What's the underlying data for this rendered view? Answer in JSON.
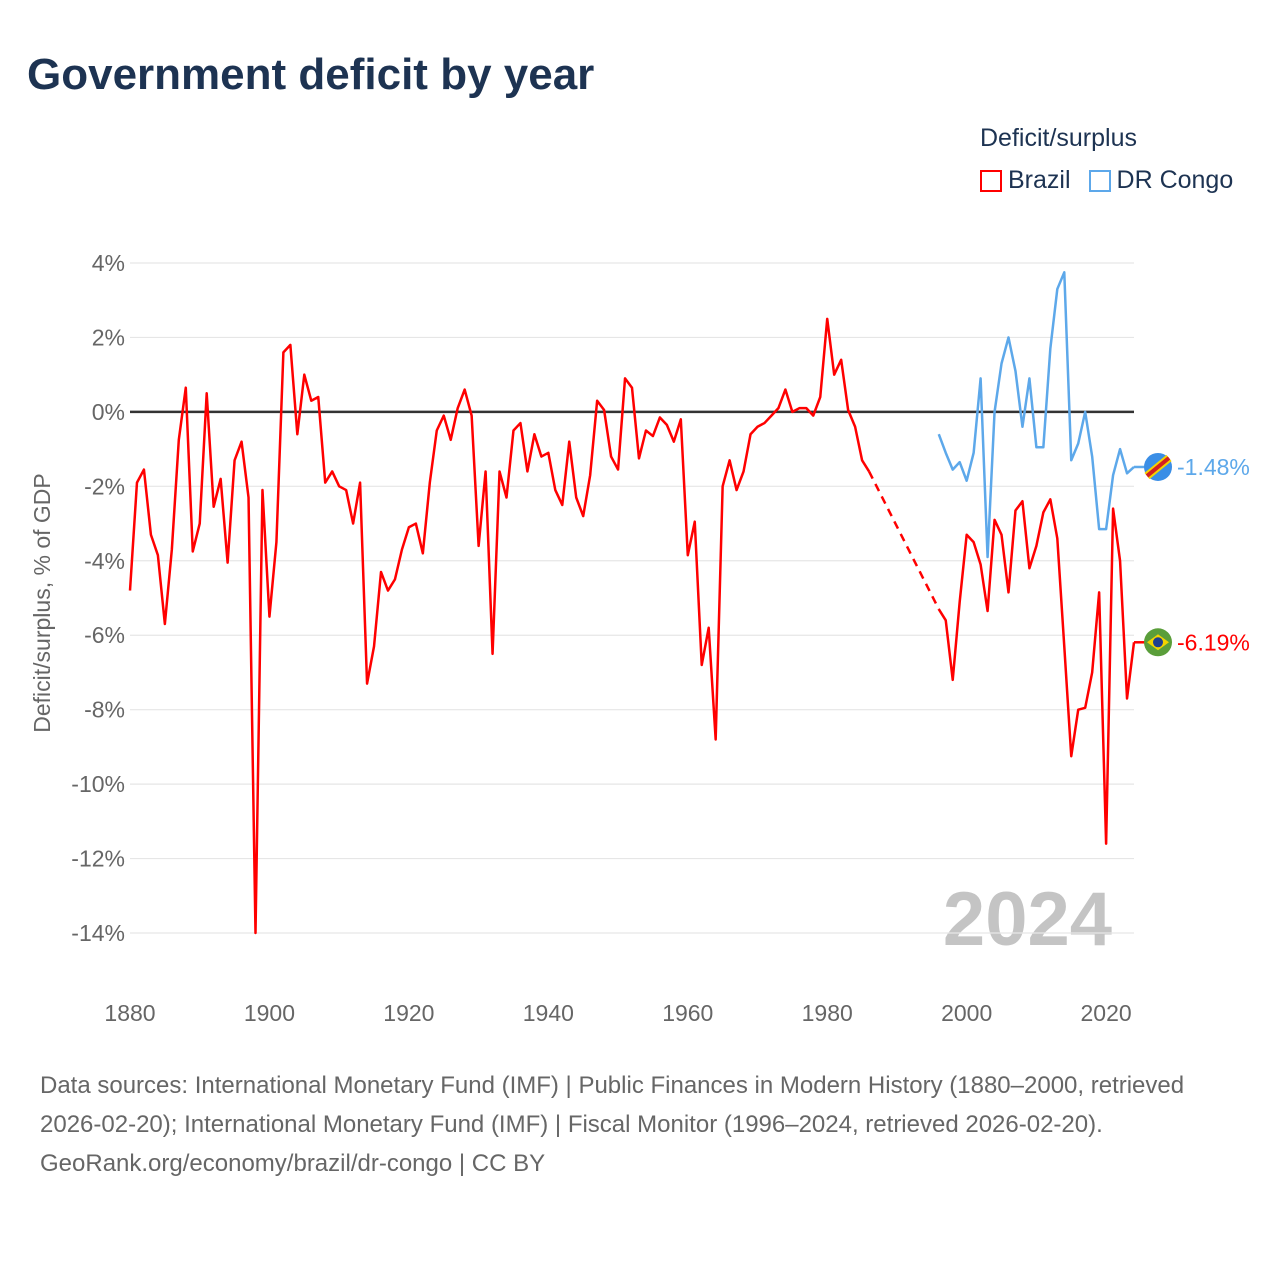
{
  "title": "Government deficit by year",
  "legend": {
    "title": "Deficit/surplus",
    "items": [
      {
        "label": "Brazil",
        "color": "#ff0000"
      },
      {
        "label": "DR Congo",
        "color": "#5da8ea"
      }
    ]
  },
  "footer": {
    "sources": "Data sources: International Monetary Fund (IMF) | Public Finances in Modern History (1880–2000, retrieved 2026-02-20); International Monetary Fund (IMF) | Fiscal Monitor (1996–2024, retrieved 2026-02-20).",
    "credit": "GeoRank.org/economy/brazil/dr-congo | CC BY"
  },
  "chart_data": {
    "type": "line",
    "title": "Government deficit by year",
    "ylabel": "Deficit/surplus, % of GDP",
    "xlabel": "",
    "xlim": [
      1880,
      2024
    ],
    "ylim": [
      -14,
      4
    ],
    "x_ticks": [
      "1880",
      "1900",
      "1920",
      "1940",
      "1960",
      "1980",
      "2000",
      "2020"
    ],
    "y_ticks": [
      "4%",
      "2%",
      "0%",
      "-2%",
      "-4%",
      "-6%",
      "-8%",
      "-10%",
      "-12%",
      "-14%"
    ],
    "year_watermark": "2024",
    "series": [
      {
        "name": "Brazil",
        "color": "#ff0000",
        "end_label": "-6.19%",
        "points": [
          [
            1880,
            -4.8
          ],
          [
            1881,
            -1.9
          ],
          [
            1882,
            -1.55
          ],
          [
            1883,
            -3.3
          ],
          [
            1884,
            -3.85
          ],
          [
            1885,
            -5.7
          ],
          [
            1886,
            -3.7
          ],
          [
            1887,
            -0.75
          ],
          [
            1888,
            0.65
          ],
          [
            1889,
            -3.75
          ],
          [
            1890,
            -3.0
          ],
          [
            1891,
            0.5
          ],
          [
            1892,
            -2.55
          ],
          [
            1893,
            -1.8
          ],
          [
            1894,
            -4.05
          ],
          [
            1895,
            -1.3
          ],
          [
            1896,
            -0.8
          ],
          [
            1897,
            -2.3
          ],
          [
            1898,
            -14.0
          ],
          [
            1899,
            -2.1
          ],
          [
            1900,
            -5.5
          ],
          [
            1901,
            -3.5
          ],
          [
            1902,
            1.6
          ],
          [
            1903,
            1.8
          ],
          [
            1904,
            -0.6
          ],
          [
            1905,
            1.0
          ],
          [
            1906,
            0.3
          ],
          [
            1907,
            0.4
          ],
          [
            1908,
            -1.9
          ],
          [
            1909,
            -1.6
          ],
          [
            1910,
            -2.0
          ],
          [
            1911,
            -2.1
          ],
          [
            1912,
            -3.0
          ],
          [
            1913,
            -1.9
          ],
          [
            1914,
            -7.3
          ],
          [
            1915,
            -6.3
          ],
          [
            1916,
            -4.3
          ],
          [
            1917,
            -4.8
          ],
          [
            1918,
            -4.5
          ],
          [
            1919,
            -3.7
          ],
          [
            1920,
            -3.1
          ],
          [
            1921,
            -3.0
          ],
          [
            1922,
            -3.8
          ],
          [
            1923,
            -1.9
          ],
          [
            1924,
            -0.5
          ],
          [
            1925,
            -0.1
          ],
          [
            1926,
            -0.75
          ],
          [
            1927,
            0.1
          ],
          [
            1928,
            0.6
          ],
          [
            1929,
            -0.1
          ],
          [
            1930,
            -3.6
          ],
          [
            1931,
            -1.6
          ],
          [
            1932,
            -6.5
          ],
          [
            1933,
            -1.6
          ],
          [
            1934,
            -2.3
          ],
          [
            1935,
            -0.5
          ],
          [
            1936,
            -0.3
          ],
          [
            1937,
            -1.6
          ],
          [
            1938,
            -0.6
          ],
          [
            1939,
            -1.2
          ],
          [
            1940,
            -1.1
          ],
          [
            1941,
            -2.1
          ],
          [
            1942,
            -2.5
          ],
          [
            1943,
            -0.8
          ],
          [
            1944,
            -2.3
          ],
          [
            1945,
            -2.8
          ],
          [
            1946,
            -1.7
          ],
          [
            1947,
            0.3
          ],
          [
            1948,
            0.05
          ],
          [
            1949,
            -1.2
          ],
          [
            1950,
            -1.55
          ],
          [
            1951,
            0.9
          ],
          [
            1952,
            0.65
          ],
          [
            1953,
            -1.25
          ],
          [
            1954,
            -0.5
          ],
          [
            1955,
            -0.65
          ],
          [
            1956,
            -0.15
          ],
          [
            1957,
            -0.35
          ],
          [
            1958,
            -0.8
          ],
          [
            1959,
            -0.2
          ],
          [
            1960,
            -3.85
          ],
          [
            1961,
            -2.95
          ],
          [
            1962,
            -6.8
          ],
          [
            1963,
            -5.8
          ],
          [
            1964,
            -8.8
          ],
          [
            1965,
            -2.0
          ],
          [
            1966,
            -1.3
          ],
          [
            1967,
            -2.1
          ],
          [
            1968,
            -1.6
          ],
          [
            1969,
            -0.6
          ],
          [
            1970,
            -0.4
          ],
          [
            1971,
            -0.3
          ],
          [
            1972,
            -0.1
          ],
          [
            1973,
            0.1
          ],
          [
            1974,
            0.6
          ],
          [
            1975,
            0.0
          ],
          [
            1976,
            0.1
          ],
          [
            1977,
            0.1
          ],
          [
            1978,
            -0.1
          ],
          [
            1979,
            0.4
          ],
          [
            1980,
            2.5
          ],
          [
            1981,
            1.0
          ],
          [
            1982,
            1.4
          ],
          [
            1983,
            0.05
          ],
          [
            1984,
            -0.4
          ],
          [
            1985,
            -1.3
          ],
          [
            1986,
            -1.6
          ],
          [
            1996,
            -5.3
          ],
          [
            1997,
            -5.6
          ],
          [
            1998,
            -7.2
          ],
          [
            1999,
            -5.1
          ],
          [
            2000,
            -3.3
          ],
          [
            2001,
            -3.5
          ],
          [
            2002,
            -4.1
          ],
          [
            2003,
            -5.35
          ],
          [
            2004,
            -2.9
          ],
          [
            2005,
            -3.3
          ],
          [
            2006,
            -4.85
          ],
          [
            2007,
            -2.65
          ],
          [
            2008,
            -2.4
          ],
          [
            2009,
            -4.2
          ],
          [
            2010,
            -3.6
          ],
          [
            2011,
            -2.7
          ],
          [
            2012,
            -2.35
          ],
          [
            2013,
            -3.4
          ],
          [
            2014,
            -6.3
          ],
          [
            2015,
            -9.25
          ],
          [
            2016,
            -8.0
          ],
          [
            2017,
            -7.95
          ],
          [
            2018,
            -7.0
          ],
          [
            2019,
            -4.85
          ],
          [
            2020,
            -11.6
          ],
          [
            2021,
            -2.6
          ],
          [
            2022,
            -4.0
          ],
          [
            2023,
            -7.7
          ],
          [
            2024,
            -6.19
          ]
        ],
        "gap": [
          1986,
          1996
        ]
      },
      {
        "name": "DR Congo",
        "color": "#5da8ea",
        "end_label": "-1.48%",
        "points": [
          [
            1996,
            -0.6
          ],
          [
            1997,
            -1.1
          ],
          [
            1998,
            -1.55
          ],
          [
            1999,
            -1.35
          ],
          [
            2000,
            -1.85
          ],
          [
            2001,
            -1.1
          ],
          [
            2002,
            0.9
          ],
          [
            2003,
            -3.9
          ],
          [
            2004,
            0.0
          ],
          [
            2005,
            1.3
          ],
          [
            2006,
            2.0
          ],
          [
            2007,
            1.1
          ],
          [
            2008,
            -0.4
          ],
          [
            2009,
            0.9
          ],
          [
            2010,
            -0.95
          ],
          [
            2011,
            -0.95
          ],
          [
            2012,
            1.7
          ],
          [
            2013,
            3.3
          ],
          [
            2014,
            3.75
          ],
          [
            2015,
            -1.3
          ],
          [
            2016,
            -0.85
          ],
          [
            2017,
            0.0
          ],
          [
            2018,
            -1.2
          ],
          [
            2019,
            -3.15
          ],
          [
            2020,
            -3.15
          ],
          [
            2021,
            -1.7
          ],
          [
            2022,
            -1.0
          ],
          [
            2023,
            -1.65
          ],
          [
            2024,
            -1.48
          ]
        ]
      }
    ]
  }
}
